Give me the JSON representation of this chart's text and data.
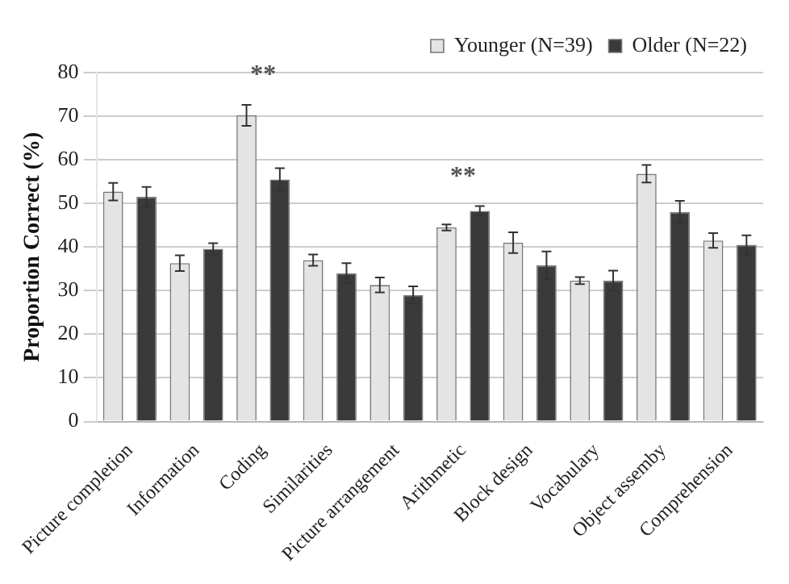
{
  "chart_data": {
    "type": "bar",
    "ylabel": "Proportion Correct (%)",
    "categories": [
      "Picture completion",
      "Information",
      "Coding",
      "Similarities",
      "Picture arrangement",
      "Arithmetic",
      "Block design",
      "Vocabulary",
      "Object assemby",
      "Comprehension"
    ],
    "series": [
      {
        "name": "Younger (N=39)",
        "color": "#e4e4e4",
        "values": [
          52.7,
          36.3,
          70.2,
          37,
          31.3,
          44.5,
          41,
          32.3,
          56.8,
          41.5
        ],
        "errors": [
          2,
          1.8,
          2.4,
          1.3,
          1.7,
          0.7,
          2.4,
          0.8,
          2,
          1.7
        ]
      },
      {
        "name": "Older (N=22)",
        "color": "#3a3a3a",
        "values": [
          51.5,
          39.6,
          55.5,
          34,
          29,
          48.3,
          35.8,
          32.3,
          48,
          40.5
        ],
        "errors": [
          2.3,
          1.3,
          2.6,
          2.3,
          2,
          1.1,
          3.2,
          2.3,
          2.6,
          2.2
        ]
      }
    ],
    "ylim": [
      0,
      80
    ],
    "yticks": [
      0,
      10,
      20,
      30,
      40,
      50,
      60,
      70,
      80
    ],
    "grid": "y",
    "legend": "top right",
    "annotations": [
      "**",
      "**"
    ]
  }
}
